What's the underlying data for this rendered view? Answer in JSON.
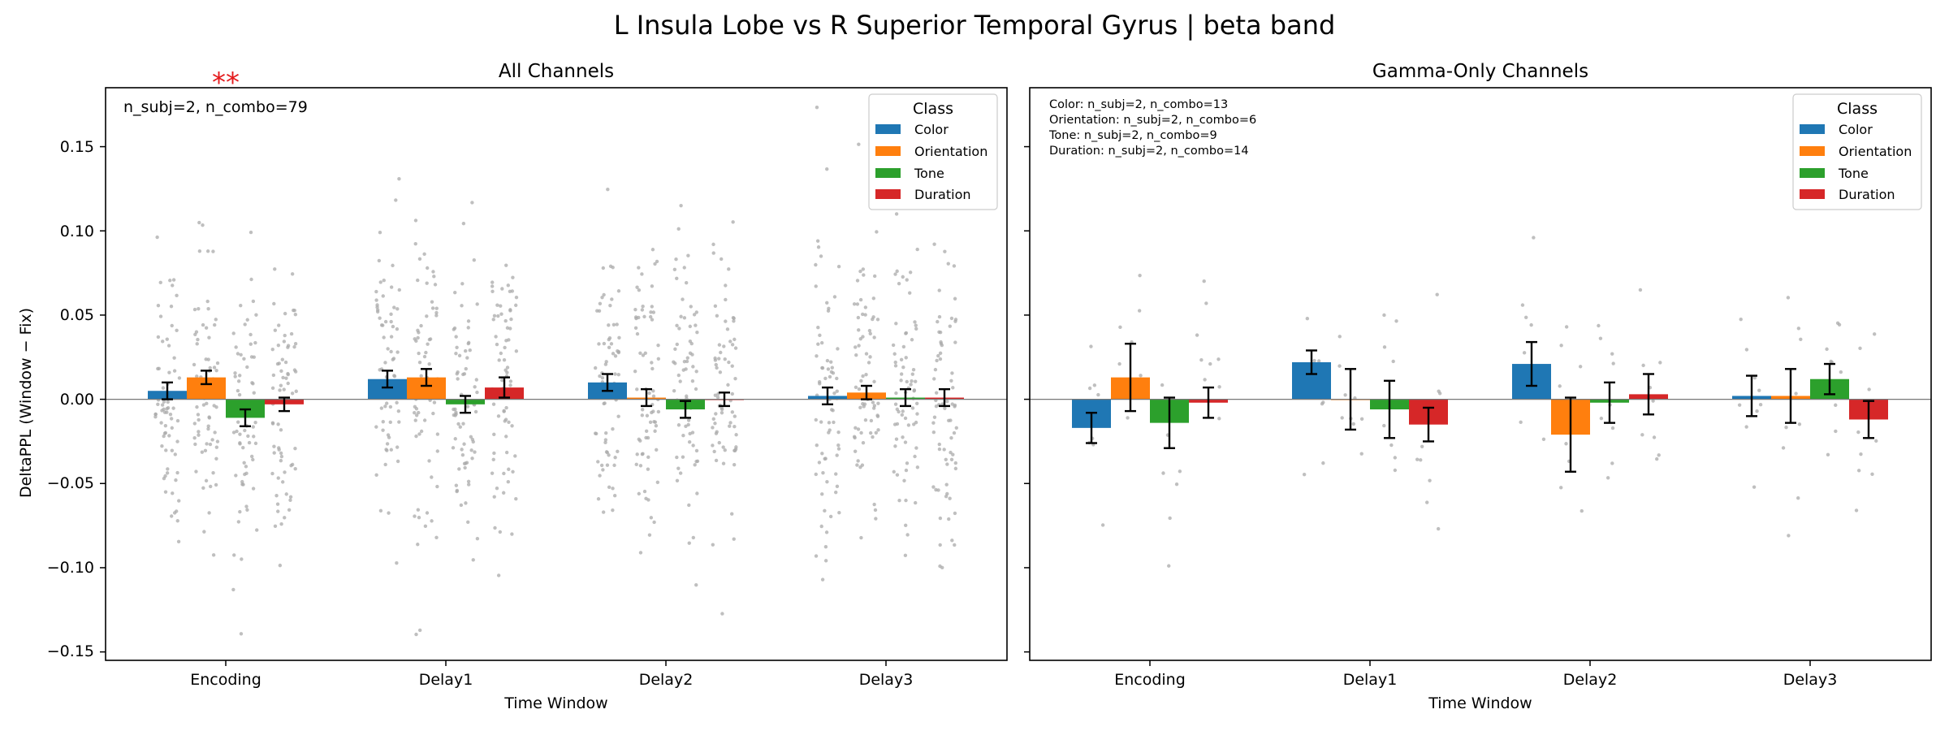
{
  "chart_data": {
    "type": "bar",
    "title": "L Insula Lobe vs R Superior Temporal Gyrus  |  beta band",
    "ylabel": "DeltaPPL (Window − Fix)",
    "xlabel": "Time Window",
    "categories": [
      "Encoding",
      "Delay1",
      "Delay2",
      "Delay3"
    ],
    "ylim": [
      -0.155,
      0.185
    ],
    "yticks": [
      "0.15",
      "0.10",
      "0.05",
      "0.00",
      "−0.05",
      "−0.10",
      "−0.15"
    ],
    "ytick_values": [
      0.15,
      0.1,
      0.05,
      0.0,
      -0.05,
      -0.1,
      -0.15
    ],
    "grid": false,
    "legend": {
      "title": "Class",
      "placement": "top-right",
      "entries": [
        "Color",
        "Orientation",
        "Tone",
        "Duration"
      ]
    },
    "colors": {
      "Color": "#1f77b4",
      "Orientation": "#ff7f0e",
      "Tone": "#2ca02c",
      "Duration": "#d62728",
      "points": "#aaaaaa",
      "significance": "#e41a1c"
    },
    "panels": [
      {
        "title": "All Channels",
        "annotation": [
          "n_subj=2, n_combo=79"
        ],
        "significance": [
          {
            "category": "Encoding",
            "label": "**"
          }
        ],
        "series": [
          {
            "name": "Color",
            "values": [
              0.005,
              0.012,
              0.01,
              0.002
            ],
            "errors": [
              0.005,
              0.005,
              0.005,
              0.005
            ]
          },
          {
            "name": "Orientation",
            "values": [
              0.013,
              0.013,
              0.001,
              0.004
            ],
            "errors": [
              0.004,
              0.005,
              0.005,
              0.004
            ]
          },
          {
            "name": "Tone",
            "values": [
              -0.011,
              -0.003,
              -0.006,
              0.001
            ],
            "errors": [
              0.005,
              0.005,
              0.005,
              0.005
            ]
          },
          {
            "name": "Duration",
            "values": [
              -0.003,
              0.007,
              0.0,
              0.001
            ],
            "errors": [
              0.004,
              0.006,
              0.004,
              0.005
            ]
          }
        ]
      },
      {
        "title": "Gamma-Only Channels",
        "annotation": [
          "Color: n_subj=2, n_combo=13",
          "Orientation: n_subj=2, n_combo=6",
          "Tone: n_subj=2, n_combo=9",
          "Duration: n_subj=2, n_combo=14"
        ],
        "significance": [],
        "series": [
          {
            "name": "Color",
            "values": [
              -0.017,
              0.022,
              0.021,
              0.002
            ],
            "errors": [
              0.009,
              0.007,
              0.013,
              0.012
            ]
          },
          {
            "name": "Orientation",
            "values": [
              0.013,
              0.0,
              -0.021,
              0.002
            ],
            "errors": [
              0.02,
              0.018,
              0.022,
              0.016
            ]
          },
          {
            "name": "Tone",
            "values": [
              -0.014,
              -0.006,
              -0.002,
              0.012
            ],
            "errors": [
              0.015,
              0.017,
              0.012,
              0.009
            ]
          },
          {
            "name": "Duration",
            "values": [
              -0.002,
              -0.015,
              0.003,
              -0.012
            ],
            "errors": [
              0.009,
              0.01,
              0.012,
              0.011
            ]
          }
        ]
      }
    ]
  }
}
